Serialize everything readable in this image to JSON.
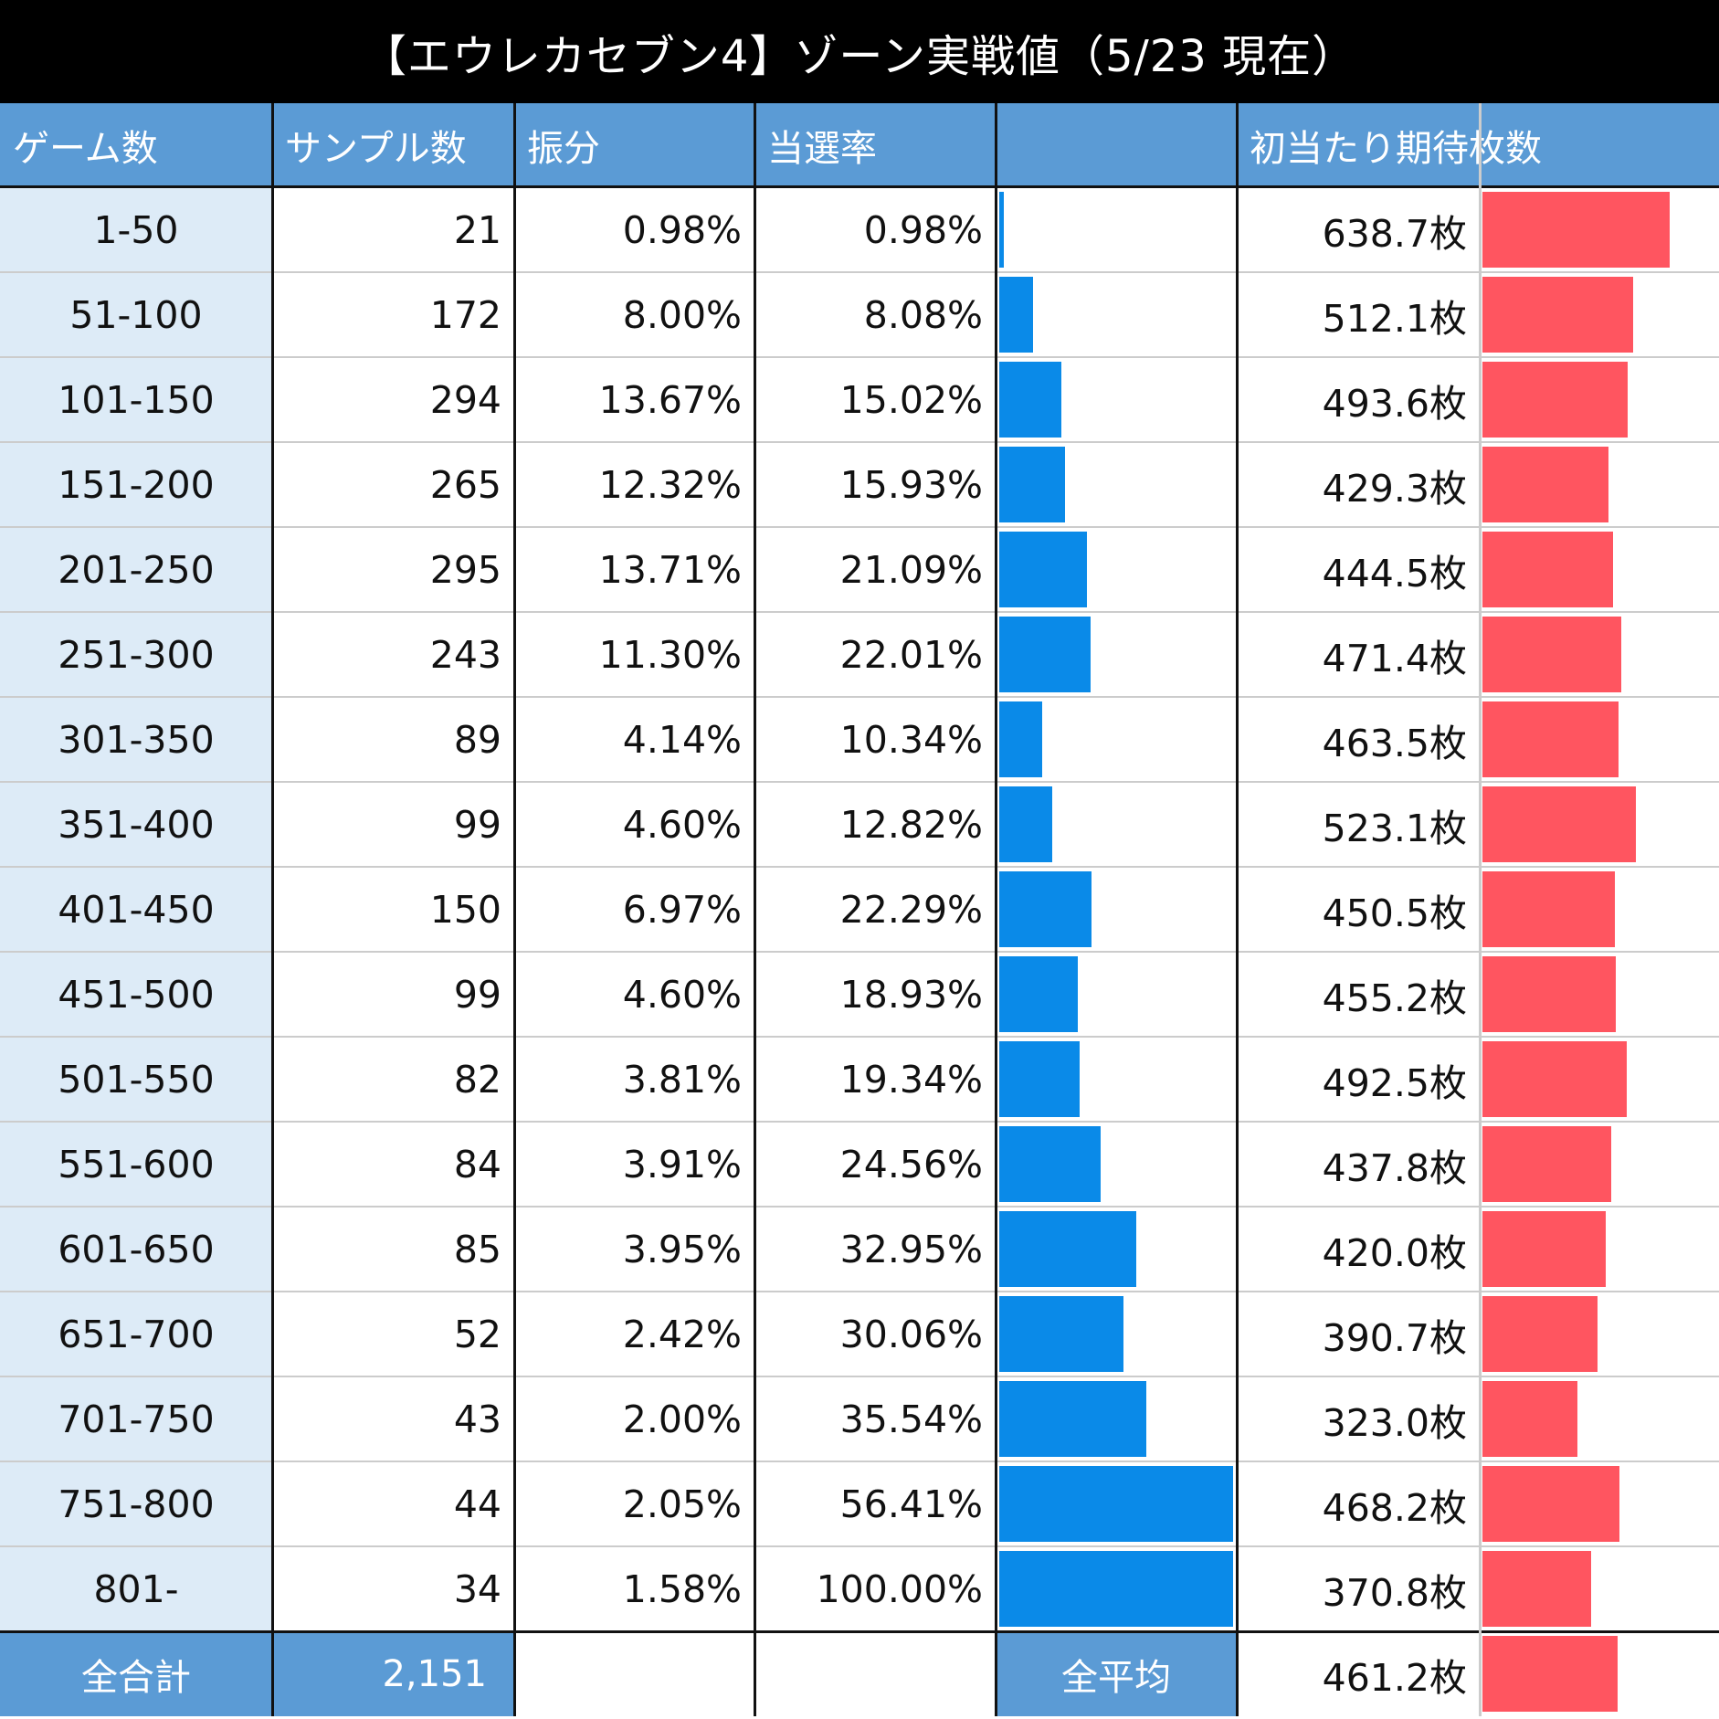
{
  "title": "【エウレカセブン4】ゾーン実戦値（5/23 現在）",
  "colors": {
    "header_bg": "#5b9bd5",
    "first_col_bg": "#ddebf7",
    "rate_bar": "#0a8ae8",
    "medal_bar": "#ff5560"
  },
  "headers": [
    "ゲーム数",
    "サンプル数",
    "振分",
    "当選率",
    "",
    "初当たり期待枚数"
  ],
  "footer": {
    "total_label": "全合計",
    "total_samples": "2,151",
    "average_label": "全平均",
    "average_medals": "461.2枚"
  },
  "chart_data": {
    "type": "table",
    "title": "【エウレカセブン4】ゾーン実戦値（5/23 現在）",
    "columns": [
      "ゲーム数",
      "サンプル数",
      "振分",
      "当選率",
      "初当たり期待枚数"
    ],
    "rows": [
      {
        "zone": "1-50",
        "samples": "21",
        "share": "0.98%",
        "rate": "0.98%",
        "rate_value": 0.98,
        "medals": "638.7枚",
        "medals_value": 638.7
      },
      {
        "zone": "51-100",
        "samples": "172",
        "share": "8.00%",
        "rate": "8.08%",
        "rate_value": 8.08,
        "medals": "512.1枚",
        "medals_value": 512.1
      },
      {
        "zone": "101-150",
        "samples": "294",
        "share": "13.67%",
        "rate": "15.02%",
        "rate_value": 15.02,
        "medals": "493.6枚",
        "medals_value": 493.6
      },
      {
        "zone": "151-200",
        "samples": "265",
        "share": "12.32%",
        "rate": "15.93%",
        "rate_value": 15.93,
        "medals": "429.3枚",
        "medals_value": 429.3
      },
      {
        "zone": "201-250",
        "samples": "295",
        "share": "13.71%",
        "rate": "21.09%",
        "rate_value": 21.09,
        "medals": "444.5枚",
        "medals_value": 444.5
      },
      {
        "zone": "251-300",
        "samples": "243",
        "share": "11.30%",
        "rate": "22.01%",
        "rate_value": 22.01,
        "medals": "471.4枚",
        "medals_value": 471.4
      },
      {
        "zone": "301-350",
        "samples": "89",
        "share": "4.14%",
        "rate": "10.34%",
        "rate_value": 10.34,
        "medals": "463.5枚",
        "medals_value": 463.5
      },
      {
        "zone": "351-400",
        "samples": "99",
        "share": "4.60%",
        "rate": "12.82%",
        "rate_value": 12.82,
        "medals": "523.1枚",
        "medals_value": 523.1
      },
      {
        "zone": "401-450",
        "samples": "150",
        "share": "6.97%",
        "rate": "22.29%",
        "rate_value": 22.29,
        "medals": "450.5枚",
        "medals_value": 450.5
      },
      {
        "zone": "451-500",
        "samples": "99",
        "share": "4.60%",
        "rate": "18.93%",
        "rate_value": 18.93,
        "medals": "455.2枚",
        "medals_value": 455.2
      },
      {
        "zone": "501-550",
        "samples": "82",
        "share": "3.81%",
        "rate": "19.34%",
        "rate_value": 19.34,
        "medals": "492.5枚",
        "medals_value": 492.5
      },
      {
        "zone": "551-600",
        "samples": "84",
        "share": "3.91%",
        "rate": "24.56%",
        "rate_value": 24.56,
        "medals": "437.8枚",
        "medals_value": 437.8
      },
      {
        "zone": "601-650",
        "samples": "85",
        "share": "3.95%",
        "rate": "32.95%",
        "rate_value": 32.95,
        "medals": "420.0枚",
        "medals_value": 420.0
      },
      {
        "zone": "651-700",
        "samples": "52",
        "share": "2.42%",
        "rate": "30.06%",
        "rate_value": 30.06,
        "medals": "390.7枚",
        "medals_value": 390.7
      },
      {
        "zone": "701-750",
        "samples": "43",
        "share": "2.00%",
        "rate": "35.54%",
        "rate_value": 35.54,
        "medals": "323.0枚",
        "medals_value": 323.0
      },
      {
        "zone": "751-800",
        "samples": "44",
        "share": "2.05%",
        "rate": "56.41%",
        "rate_value": 56.41,
        "medals": "468.2枚",
        "medals_value": 468.2
      },
      {
        "zone": "801-",
        "samples": "34",
        "share": "1.58%",
        "rate": "100.00%",
        "rate_value": 100.0,
        "medals": "370.8枚",
        "medals_value": 370.8
      }
    ],
    "average_medals_value": 461.2
  }
}
